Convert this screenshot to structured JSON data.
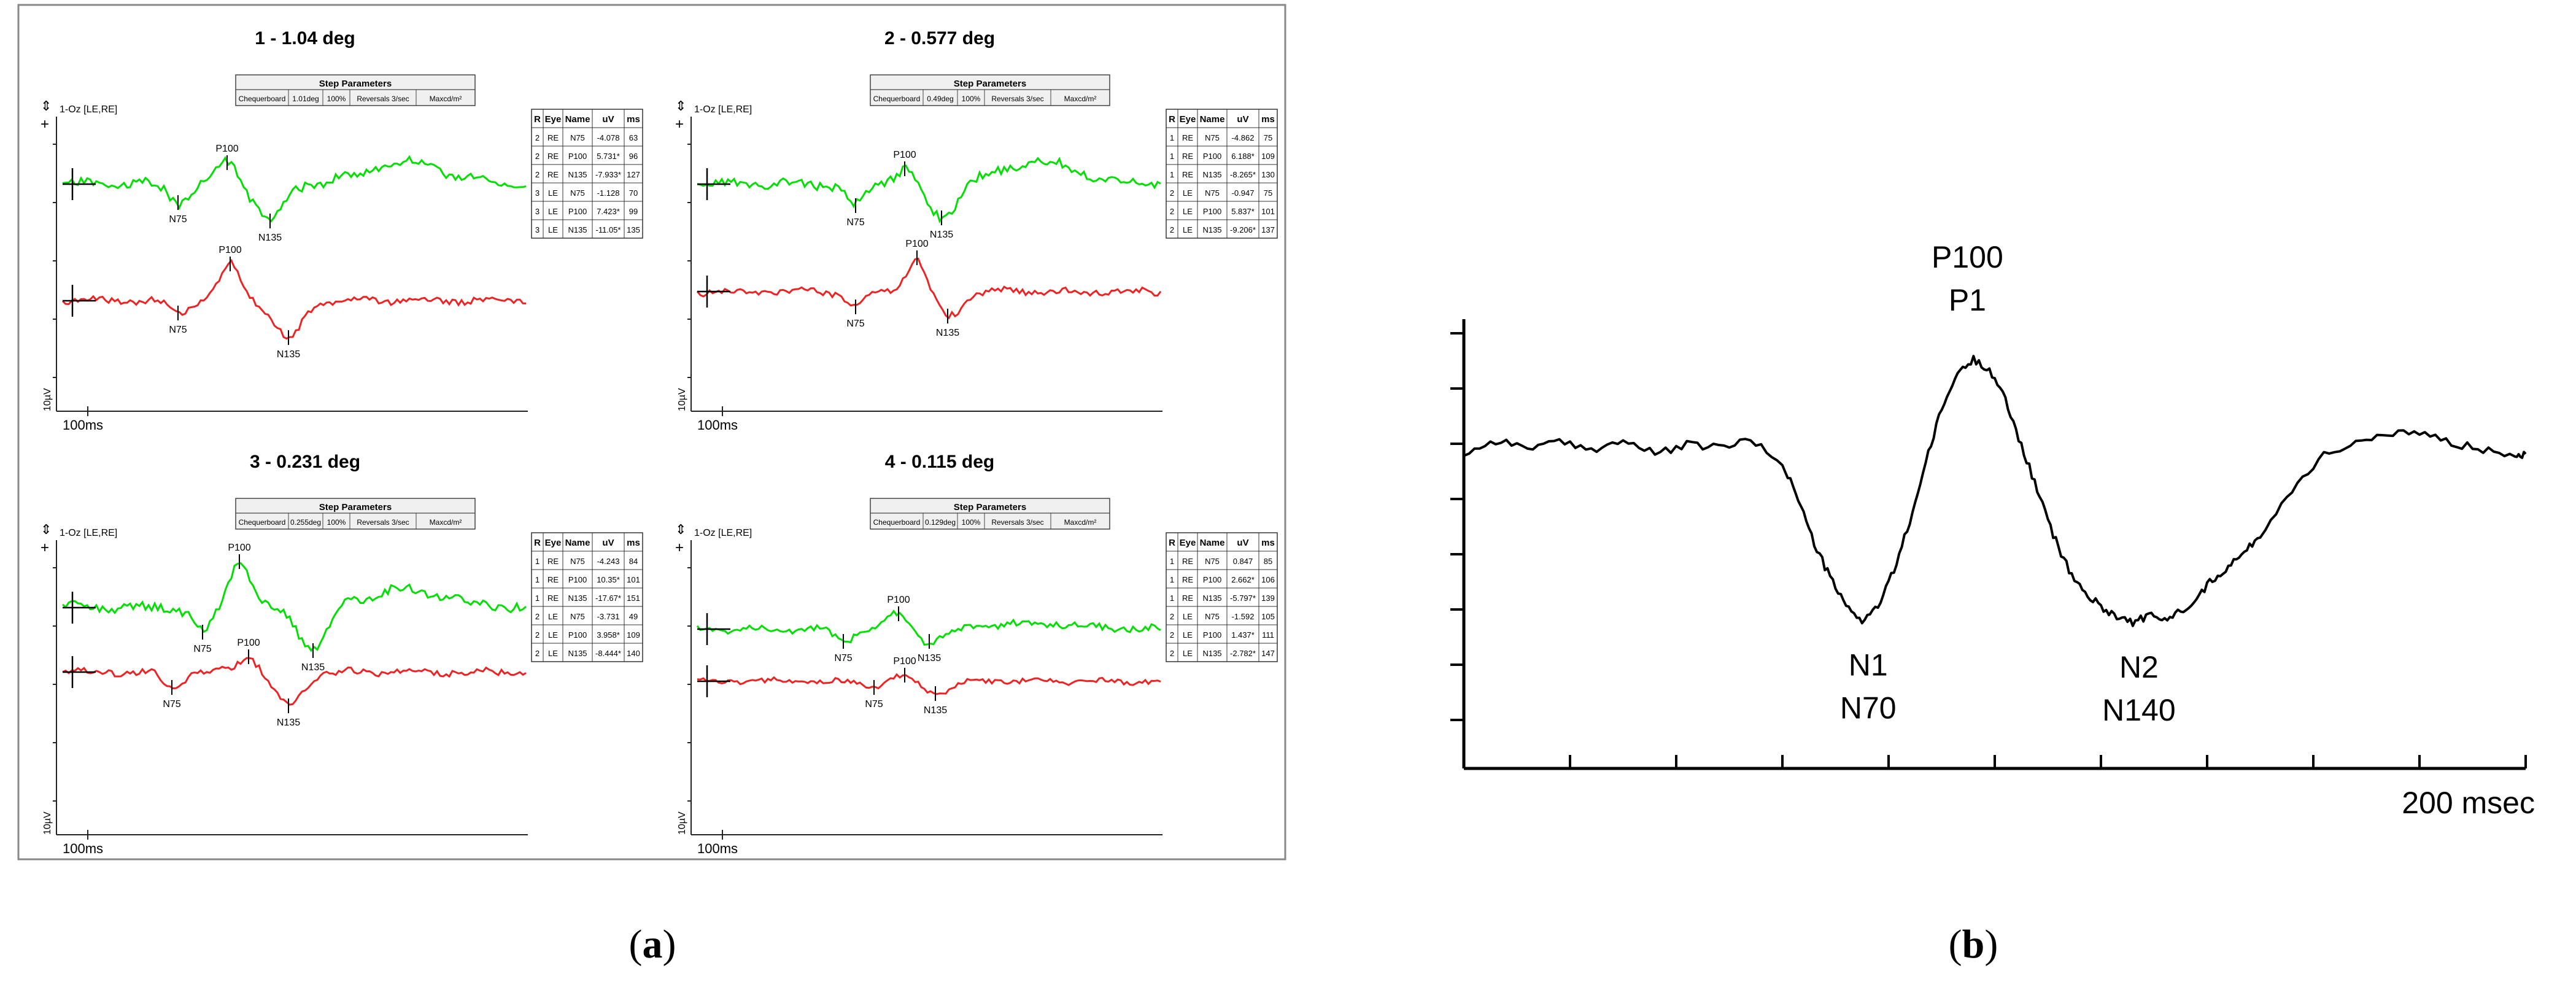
{
  "panel_labels": {
    "a": "(a)",
    "b": "(b)"
  },
  "step_params_header": "Step Parameters",
  "channel_label": "1-Oz [LE,RE]",
  "amplitude_scale_label": "10µV",
  "time_scale_label": "100ms",
  "table_headers": [
    "R",
    "Eye",
    "Name",
    "uV",
    "ms"
  ],
  "chart_data": [
    {
      "type": "line",
      "title": "1 - 1.04 deg",
      "step_params": [
        "Chequerboard",
        "1.01deg",
        "100%",
        "Reversals 3/sec",
        "Maxcd/m²"
      ],
      "xlabel": "100ms",
      "ylabel": "10µV",
      "table_rows": [
        [
          "2",
          "RE",
          "N75",
          "-4.078",
          "63"
        ],
        [
          "2",
          "RE",
          "P100",
          "5.731*",
          "96"
        ],
        [
          "2",
          "RE",
          "N135",
          "-7.933*",
          "127"
        ],
        [
          "3",
          "LE",
          "N75",
          "-1.128",
          "70"
        ],
        [
          "3",
          "LE",
          "P100",
          "7.423*",
          "99"
        ],
        [
          "3",
          "LE",
          "N135",
          "-11.05*",
          "135"
        ]
      ],
      "series": [
        {
          "name": "RE",
          "color": "#00e000",
          "markers": [
            "N75",
            "P100",
            "N135"
          ]
        },
        {
          "name": "LE",
          "color": "#ee2222",
          "markers": [
            "N75",
            "P100",
            "N135"
          ]
        }
      ]
    },
    {
      "type": "line",
      "title": "2 - 0.577 deg",
      "step_params": [
        "Chequerboard",
        "0.49deg",
        "100%",
        "Reversals 3/sec",
        "Maxcd/m²"
      ],
      "xlabel": "100ms",
      "ylabel": "10µV",
      "table_rows": [
        [
          "1",
          "RE",
          "N75",
          "-4.862",
          "75"
        ],
        [
          "1",
          "RE",
          "P100",
          "6.188*",
          "109"
        ],
        [
          "1",
          "RE",
          "N135",
          "-8.265*",
          "130"
        ],
        [
          "2",
          "LE",
          "N75",
          "-0.947",
          "75"
        ],
        [
          "2",
          "LE",
          "P100",
          "5.837*",
          "101"
        ],
        [
          "2",
          "LE",
          "N135",
          "-9.206*",
          "137"
        ]
      ],
      "series": [
        {
          "name": "RE",
          "color": "#00e000",
          "markers": [
            "N75",
            "P100",
            "N135"
          ]
        },
        {
          "name": "LE",
          "color": "#ee2222",
          "markers": [
            "N75",
            "P100",
            "N135"
          ]
        }
      ]
    },
    {
      "type": "line",
      "title": "3 - 0.231 deg",
      "step_params": [
        "Chequerboard",
        "0.255deg",
        "100%",
        "Reversals 3/sec",
        "Maxcd/m²"
      ],
      "xlabel": "100ms",
      "ylabel": "10µV",
      "table_rows": [
        [
          "1",
          "RE",
          "N75",
          "-4.243",
          "84"
        ],
        [
          "1",
          "RE",
          "P100",
          "10.35*",
          "101"
        ],
        [
          "1",
          "RE",
          "N135",
          "-17.67*",
          "151"
        ],
        [
          "2",
          "LE",
          "N75",
          "-3.731",
          "49"
        ],
        [
          "2",
          "LE",
          "P100",
          "3.958*",
          "109"
        ],
        [
          "2",
          "LE",
          "N135",
          "-8.444*",
          "140"
        ]
      ],
      "series": [
        {
          "name": "RE",
          "color": "#00e000",
          "markers": [
            "N75",
            "P100",
            "N135"
          ]
        },
        {
          "name": "LE",
          "color": "#ee2222",
          "markers": [
            "N75",
            "P100",
            "N135"
          ]
        }
      ]
    },
    {
      "type": "line",
      "title": "4 - 0.115 deg",
      "step_params": [
        "Chequerboard",
        "0.129deg",
        "100%",
        "Reversals 3/sec",
        "Maxcd/m²"
      ],
      "xlabel": "100ms",
      "ylabel": "10µV",
      "table_rows": [
        [
          "1",
          "RE",
          "N75",
          "0.847",
          "85"
        ],
        [
          "1",
          "RE",
          "P100",
          "2.662*",
          "106"
        ],
        [
          "1",
          "RE",
          "N135",
          "-5.797*",
          "139"
        ],
        [
          "2",
          "LE",
          "N75",
          "-1.592",
          "105"
        ],
        [
          "2",
          "LE",
          "P100",
          "1.437*",
          "111"
        ],
        [
          "2",
          "LE",
          "N135",
          "-2.782*",
          "147"
        ]
      ],
      "series": [
        {
          "name": "RE",
          "color": "#00e000",
          "markers": [
            "N75",
            "P100",
            "N135"
          ]
        },
        {
          "name": "LE",
          "color": "#ee2222",
          "markers": [
            "N75",
            "P100",
            "N135"
          ]
        }
      ]
    },
    {
      "type": "line",
      "title": "",
      "xlabel": "200 msec",
      "ylabel": "",
      "x_ticks": 10,
      "y_ticks": 8,
      "peaks": [
        {
          "label_top": "N1",
          "label_bottom": "N70"
        },
        {
          "label_top": "P100",
          "label_bottom": "P1"
        },
        {
          "label_top": "N2",
          "label_bottom": "N140"
        }
      ],
      "series": [
        {
          "color": "#000000",
          "x": [
            0,
            6,
            12,
            18,
            24,
            30,
            36,
            42,
            48,
            54,
            60,
            63,
            66,
            69,
            72,
            75,
            78,
            81,
            84,
            87,
            90,
            93,
            96,
            99,
            102,
            105,
            108,
            111,
            114,
            117,
            120,
            123,
            126,
            129,
            132,
            135,
            138,
            141,
            144,
            147,
            150,
            156,
            162,
            168,
            174,
            180,
            186,
            192,
            198,
            200
          ],
          "y": [
            6.0,
            6.6,
            6.3,
            6.5,
            6.2,
            6.6,
            6.0,
            6.4,
            6.3,
            6.6,
            5.6,
            4.0,
            2.0,
            0.5,
            -0.8,
            -1.4,
            -0.8,
            0.8,
            3.0,
            5.6,
            8.0,
            9.6,
            10.2,
            9.8,
            8.4,
            6.4,
            4.4,
            2.4,
            0.8,
            -0.2,
            -0.8,
            -1.2,
            -1.5,
            -1.2,
            -1.4,
            -1.0,
            -0.4,
            0.4,
            1.0,
            1.6,
            2.4,
            4.4,
            6.0,
            6.5,
            6.8,
            7.0,
            6.5,
            6.2,
            6.0,
            6.0
          ]
        }
      ]
    }
  ]
}
